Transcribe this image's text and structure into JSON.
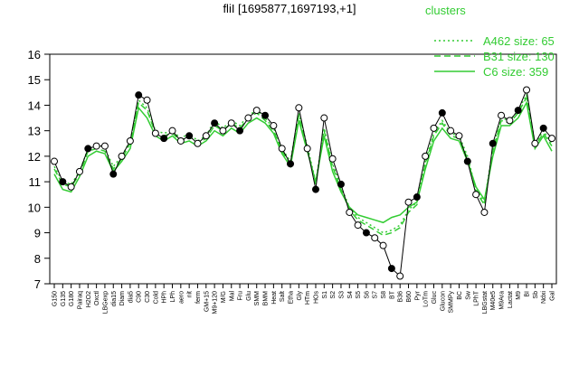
{
  "chart_data": {
    "type": "line",
    "title": "fliI [1695877,1697193,+1]",
    "legend_title": "clusters",
    "categories": [
      "G150",
      "G135",
      "G180",
      "Pairaq",
      "H2O2",
      "Oxctl",
      "LBGexp",
      "dia15",
      "Diam",
      "dia5",
      "C90",
      "C30",
      "Cold",
      "HPh",
      "LPh",
      "aero",
      "nit",
      "ferm",
      "GM+15",
      "M9+120",
      "M/G",
      "Mal",
      "Fru",
      "Glu",
      "SMM",
      "BMM",
      "Heat",
      "Salt",
      "Etha",
      "Gly",
      "HTm",
      "HOs",
      "S1",
      "S2",
      "S3",
      "S4",
      "S5",
      "S6",
      "S7",
      "S8",
      "BT",
      "B36",
      "B60",
      "Pyr",
      "LoTm",
      "Gluc",
      "Glucon",
      "SMMPy",
      "BC",
      "Sw",
      "LPhT",
      "LBGstat",
      "M40e5",
      "M9Ara",
      "Lactat",
      "M9",
      "BI",
      "Sb",
      "Ndxi",
      "Gal"
    ],
    "profile": {
      "color": "#000000",
      "values": [
        11.8,
        11.0,
        10.8,
        11.4,
        12.3,
        12.4,
        12.4,
        11.3,
        12.0,
        12.6,
        14.4,
        14.2,
        12.9,
        12.7,
        13.0,
        12.6,
        12.8,
        12.5,
        12.8,
        13.3,
        13.0,
        13.3,
        13.0,
        13.5,
        13.8,
        13.6,
        13.2,
        12.3,
        11.7,
        13.9,
        12.3,
        10.7,
        13.5,
        11.9,
        10.9,
        9.8,
        9.3,
        9.0,
        8.8,
        8.5,
        7.6,
        7.3,
        10.2,
        10.4,
        12.0,
        13.1,
        13.7,
        13.0,
        12.8,
        11.8,
        10.5,
        9.8,
        12.5,
        13.6,
        13.4,
        13.8,
        14.6,
        12.5,
        13.1,
        12.7
      ]
    },
    "series": [
      {
        "name": "A462 size: 65",
        "color": "#33cc33",
        "dash": "2,3",
        "values": [
          11.6,
          11.0,
          10.9,
          11.4,
          12.3,
          12.4,
          12.3,
          11.6,
          12.0,
          12.6,
          14.2,
          13.9,
          13.0,
          12.9,
          13.0,
          12.7,
          12.9,
          12.6,
          12.8,
          13.4,
          13.1,
          13.4,
          13.2,
          13.6,
          13.8,
          13.5,
          13.1,
          12.3,
          11.8,
          13.7,
          12.4,
          11.0,
          13.1,
          11.7,
          10.8,
          10.0,
          9.6,
          9.4,
          9.2,
          9.0,
          9.1,
          9.3,
          9.9,
          10.2,
          11.8,
          12.9,
          13.4,
          12.9,
          12.8,
          12.0,
          10.7,
          10.2,
          12.3,
          13.5,
          13.4,
          13.8,
          14.4,
          12.5,
          13.0,
          12.5
        ]
      },
      {
        "name": "B31 size: 130",
        "color": "#33cc33",
        "dash": "7,4",
        "values": [
          11.5,
          10.9,
          10.8,
          11.3,
          12.2,
          12.3,
          12.2,
          11.5,
          11.9,
          12.5,
          14.1,
          13.8,
          12.9,
          12.8,
          12.9,
          12.6,
          12.8,
          12.5,
          12.7,
          13.2,
          13.0,
          13.3,
          13.1,
          13.5,
          13.7,
          13.4,
          13.0,
          12.2,
          11.7,
          13.6,
          12.3,
          10.9,
          13.0,
          11.6,
          10.7,
          9.9,
          9.5,
          9.3,
          9.1,
          8.9,
          9.0,
          9.2,
          9.8,
          10.1,
          11.7,
          12.8,
          13.3,
          12.8,
          12.7,
          11.9,
          10.6,
          10.1,
          12.2,
          13.4,
          13.3,
          13.7,
          14.3,
          12.4,
          12.9,
          12.4
        ]
      },
      {
        "name": "C6 size: 359",
        "color": "#33cc33",
        "dash": "none",
        "values": [
          11.3,
          10.7,
          10.6,
          11.2,
          12.0,
          12.2,
          12.1,
          11.4,
          11.8,
          12.3,
          13.9,
          13.5,
          12.8,
          12.6,
          12.8,
          12.5,
          12.6,
          12.4,
          12.6,
          13.0,
          12.8,
          13.1,
          12.9,
          13.3,
          13.5,
          13.3,
          12.9,
          12.1,
          11.6,
          13.4,
          12.2,
          11.0,
          12.8,
          11.4,
          10.6,
          10.0,
          9.7,
          9.6,
          9.5,
          9.4,
          9.6,
          9.7,
          10.0,
          10.2,
          11.5,
          12.6,
          13.1,
          12.7,
          12.6,
          11.8,
          10.8,
          10.3,
          12.0,
          13.2,
          13.2,
          13.5,
          14.1,
          12.3,
          12.8,
          12.2
        ]
      }
    ],
    "ylim": [
      7,
      16
    ],
    "yticks": [
      7,
      8,
      9,
      10,
      11,
      12,
      13,
      14,
      15,
      16
    ]
  }
}
